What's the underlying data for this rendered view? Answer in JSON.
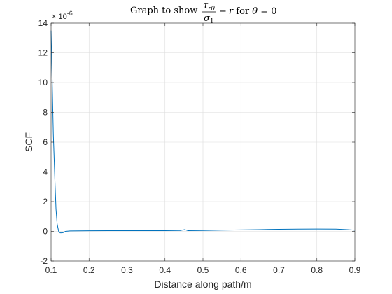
{
  "chart_data": {
    "type": "line",
    "title": {
      "prefix": "Graph to show ",
      "frac_num": "τ",
      "frac_num_sub": "rθ",
      "frac_den": "σ",
      "frac_den_sub": "1",
      "suffix_var": "r",
      "suffix_mid": " for ",
      "suffix_theta": "θ",
      "suffix_eq": " = 0",
      "minus": "−"
    },
    "xlabel": "Distance along path/m",
    "ylabel": "SCF",
    "exponent": {
      "base": "× 10",
      "power": "-6"
    },
    "xlim": [
      0.1,
      0.9
    ],
    "ylim": [
      -2,
      14
    ],
    "xticks": [
      0.1,
      0.2,
      0.3,
      0.4,
      0.5,
      0.6,
      0.7,
      0.8,
      0.9
    ],
    "xtick_labels": [
      "0.1",
      "0.2",
      "0.3",
      "0.4",
      "0.5",
      "0.6",
      "0.7",
      "0.8",
      "0.9"
    ],
    "yticks": [
      -2,
      0,
      2,
      4,
      6,
      8,
      10,
      12,
      14
    ],
    "ytick_labels": [
      "-2",
      "0",
      "2",
      "4",
      "6",
      "8",
      "10",
      "12",
      "14"
    ],
    "grid": true,
    "series": [
      {
        "color": "#0072BD",
        "x": [
          0.1,
          0.103,
          0.106,
          0.11,
          0.113,
          0.116,
          0.12,
          0.124,
          0.128,
          0.132,
          0.138,
          0.145,
          0.15,
          0.2,
          0.25,
          0.3,
          0.35,
          0.4,
          0.44,
          0.452,
          0.46,
          0.5,
          0.55,
          0.6,
          0.65,
          0.7,
          0.75,
          0.8,
          0.85,
          0.88,
          0.9
        ],
        "y": [
          13.5,
          10.0,
          6.5,
          3.5,
          1.5,
          0.5,
          0.0,
          -0.1,
          -0.1,
          -0.08,
          0.0,
          0.02,
          0.03,
          0.04,
          0.05,
          0.05,
          0.05,
          0.05,
          0.06,
          0.12,
          0.05,
          0.06,
          0.08,
          0.1,
          0.12,
          0.14,
          0.15,
          0.16,
          0.15,
          0.12,
          0.08
        ]
      }
    ]
  }
}
